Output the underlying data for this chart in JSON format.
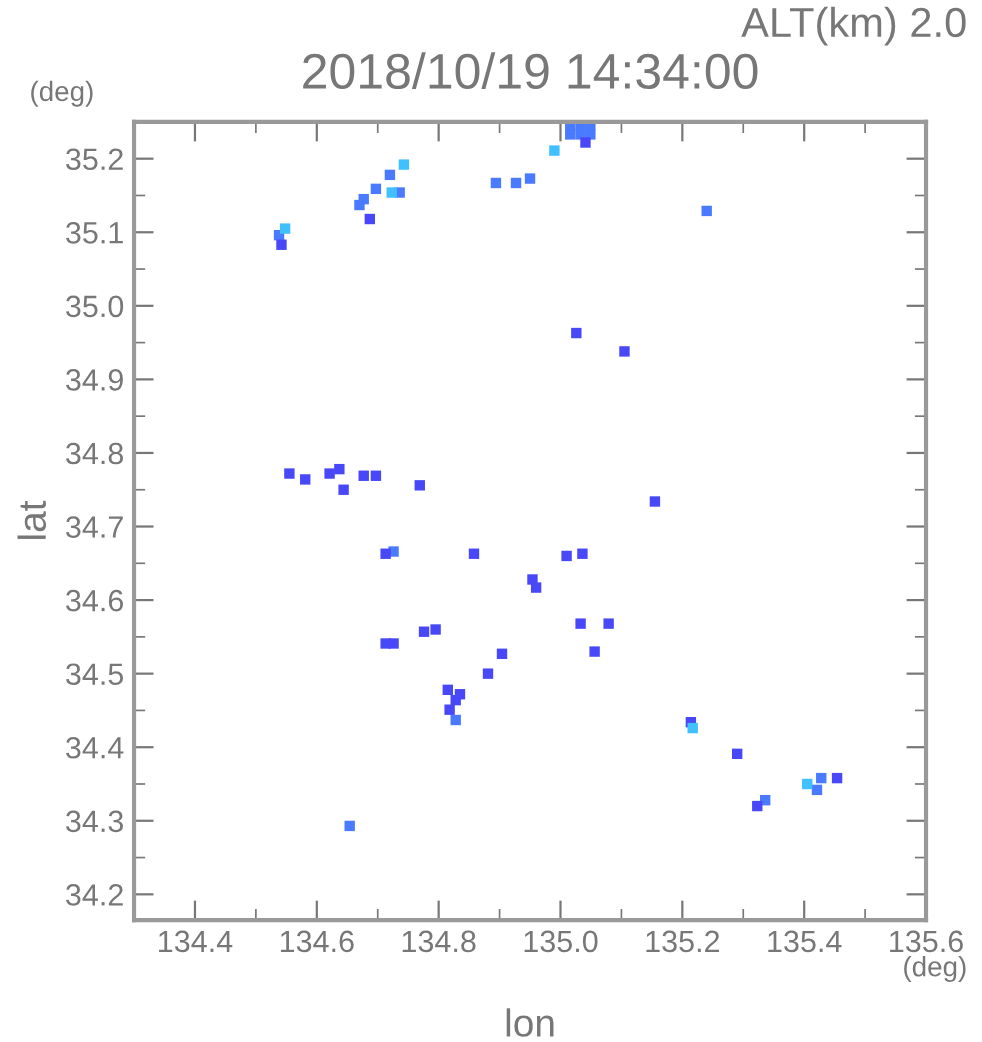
{
  "chart_data": {
    "type": "scatter",
    "title": "2018/10/19 14:34:00",
    "xlabel": "lon",
    "ylabel": "lat",
    "annotations": [
      "ALT(km) 2.0",
      "(deg)",
      "(deg)"
    ],
    "xlim": [
      134.3,
      135.6
    ],
    "xticks": [
      134.4,
      134.6,
      134.8,
      {
        "value": 135.0,
        "label": "135.0"
      },
      135.2,
      135.4,
      135.6
    ],
    "ylim": [
      34.165,
      35.25
    ],
    "yticks": [
      34.2,
      34.3,
      34.4,
      34.5,
      34.6,
      34.7,
      34.8,
      34.9,
      {
        "value": 35.0,
        "label": "35.0"
      },
      35.1,
      35.2
    ],
    "grid": false,
    "legend": false,
    "marker": "square",
    "series": [
      {
        "color": "#4a7aff",
        "x": [
          135.016,
          135.033,
          135.049,
          135.016,
          135.033,
          135.049,
          134.72,
          134.697,
          134.677,
          134.736,
          134.538,
          134.894,
          134.927,
          134.95,
          135.24,
          134.67,
          134.726,
          134.828,
          135.421,
          135.428,
          135.336,
          134.654
        ],
        "values": [
          35.246,
          35.246,
          35.246,
          35.233,
          35.233,
          35.233,
          35.178,
          35.159,
          35.145,
          35.154,
          35.096,
          35.167,
          35.167,
          35.173,
          35.129,
          35.137,
          34.666,
          34.437,
          34.342,
          34.358,
          34.328,
          34.293
        ]
      },
      {
        "color": "#4848f8",
        "x": [
          135.041,
          134.687,
          134.542,
          135.026,
          135.105,
          134.555,
          134.581,
          134.621,
          134.637,
          134.644,
          134.677,
          134.697,
          134.769,
          135.155,
          134.713,
          134.858,
          134.954,
          134.96,
          135.036,
          135.01,
          135.033,
          135.056,
          135.079,
          134.713,
          134.726,
          134.776,
          134.795,
          134.904,
          134.881,
          134.835,
          134.815,
          134.818,
          134.828,
          135.214,
          135.29,
          135.323,
          135.454
        ],
        "values": [
          35.222,
          35.118,
          35.083,
          34.963,
          34.938,
          34.772,
          34.764,
          34.772,
          34.778,
          34.75,
          34.769,
          34.769,
          34.756,
          34.734,
          34.663,
          34.663,
          34.628,
          34.617,
          34.663,
          34.66,
          34.568,
          34.53,
          34.568,
          34.541,
          34.541,
          34.557,
          34.56,
          34.527,
          34.5,
          34.472,
          34.478,
          34.451,
          34.464,
          34.434,
          34.391,
          34.32,
          34.358
        ]
      },
      {
        "color": "#40c0ff",
        "x": [
          134.743,
          134.548,
          134.99,
          135.405,
          135.217,
          134.723
        ],
        "values": [
          35.192,
          35.105,
          35.211,
          34.35,
          34.426,
          35.154
        ]
      }
    ]
  }
}
